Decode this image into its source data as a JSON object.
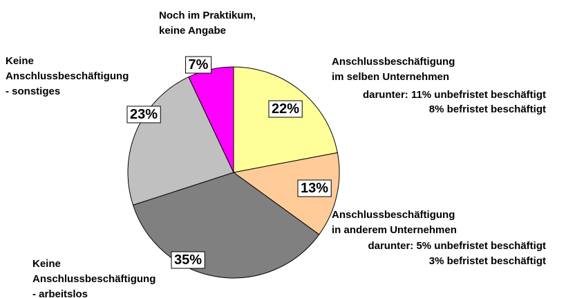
{
  "chart_data": {
    "type": "pie",
    "categories": [
      "Anschlussbeschäftigung\nim selben Unternehmen",
      "Anschlussbeschäftigung\nin anderem Unternehmen",
      "Keine\nAnschlussbeschäftigung\n- arbeitslos",
      "Keine\nAnschlussbeschäftigung\n- sonstiges",
      "Noch im Praktikum,\nkeine Angabe"
    ],
    "values": [
      22,
      13,
      35,
      23,
      7
    ],
    "value_labels": [
      "22%",
      "13%",
      "35%",
      "23%",
      "7%"
    ],
    "colors": [
      "#ffff99",
      "#ffcc99",
      "#808080",
      "#c0c0c0",
      "#ff00ff"
    ],
    "annotations": [
      "darunter: 11% unbefristet beschäftigt",
      "8% befristet beschäftigt",
      "darunter: 5% unbefristet beschäftigt",
      "3% befristet beschäftigt"
    ]
  }
}
